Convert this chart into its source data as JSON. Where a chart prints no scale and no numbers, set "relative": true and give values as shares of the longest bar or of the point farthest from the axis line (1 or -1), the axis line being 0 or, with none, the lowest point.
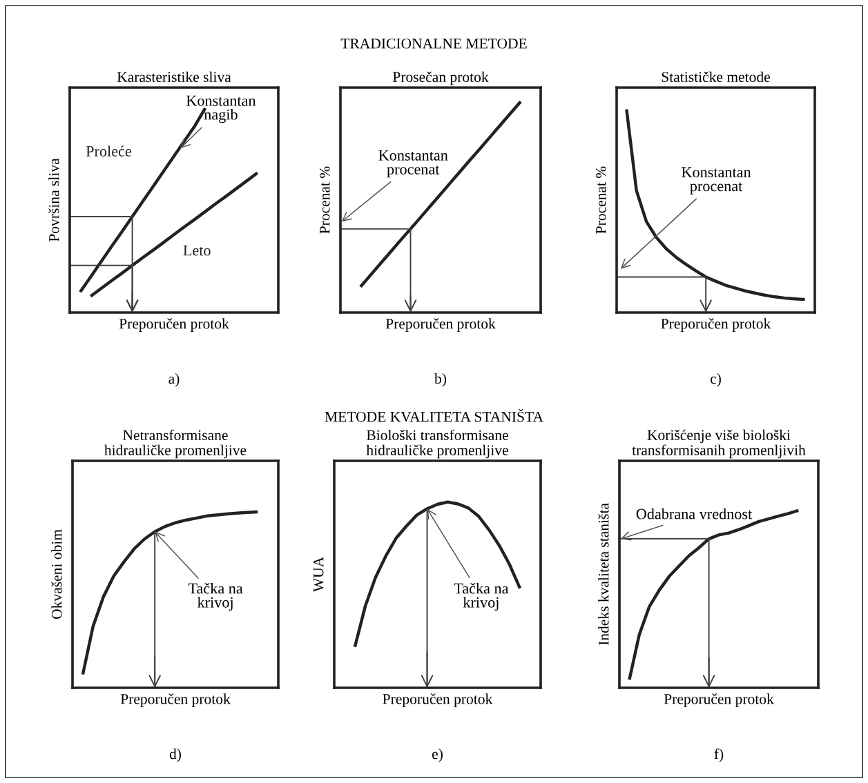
{
  "chart_data": [
    {
      "type": "line",
      "relative": true,
      "title": "Karasteristike sliva",
      "xlabel": "Preporučen protok",
      "ylabel": "Površina sliva",
      "tick_labels": false,
      "categories": [
        null,
        null,
        null,
        null,
        null,
        null,
        null,
        null,
        null,
        null,
        null,
        null,
        null,
        null,
        null,
        null,
        null,
        null,
        null,
        null,
        null
      ],
      "series": [
        {
          "name": "Proleće",
          "color": "#1e2420",
          "values": [
            null,
            0.1,
            0.174,
            0.248,
            0.322,
            0.395,
            0.469,
            0.543,
            0.617,
            0.691,
            0.765,
            0.839,
            0.913,
            1.0,
            null,
            null,
            null,
            null,
            null,
            null,
            null
          ]
        },
        {
          "name": "Leto",
          "color": "#1e2420",
          "values": [
            null,
            null,
            0.079,
            0.117,
            0.155,
            0.192,
            0.23,
            0.268,
            0.305,
            0.343,
            0.381,
            0.419,
            0.456,
            0.494,
            0.532,
            0.569,
            0.607,
            0.645,
            0.683,
            null,
            null
          ]
        },
        {
          "type": "step",
          "color": "#404040",
          "values": [
            0.469,
            0.469,
            0.469,
            0.469,
            0.469,
            0.469,
            0.469,
            0,
            null,
            null,
            null,
            null,
            null,
            null,
            null,
            null,
            null,
            null,
            null,
            null,
            null
          ]
        },
        {
          "type": "step",
          "color": "#404040",
          "values": [
            0.23,
            0.23,
            0.23,
            0.23,
            0.23,
            0.23,
            0.23,
            0,
            null,
            null,
            null,
            null,
            null,
            null,
            null,
            null,
            null,
            null,
            null,
            null,
            null
          ]
        }
      ],
      "annotations": [
        "a)",
        "Konstantan\nnagib",
        "TRADICIONALNE METODE"
      ]
    },
    {
      "type": "line",
      "relative": true,
      "title": "Prosečan protok",
      "xlabel": "Preporučen protok",
      "ylabel": "Procenat %",
      "tick_labels": false,
      "categories": [
        null,
        null,
        null,
        null,
        null,
        null,
        null,
        null,
        null,
        null,
        null,
        null,
        null,
        null,
        null,
        null,
        null,
        null,
        null,
        null,
        null
      ],
      "series": [
        {
          "color": "#1e2420",
          "values": [
            null,
            null,
            0.122,
            0.177,
            0.232,
            0.287,
            0.342,
            0.396,
            0.451,
            0.506,
            0.561,
            0.616,
            0.671,
            0.726,
            0.78,
            0.835,
            0.89,
            0.945,
            1.0,
            null,
            null
          ]
        },
        {
          "type": "step",
          "color": "#404040",
          "values": [
            0.396,
            0.396,
            0.396,
            0.396,
            0.396,
            0.396,
            0.396,
            0.396,
            0,
            null,
            null,
            null,
            null,
            null,
            null,
            null,
            null,
            null,
            null,
            null,
            null
          ]
        }
      ],
      "annotations": [
        "b)",
        "Konstantan\nprocenat"
      ]
    },
    {
      "type": "line",
      "relative": true,
      "title": "Statističke metode",
      "xlabel": "Preporučen protok",
      "ylabel": "Procenat %",
      "tick_labels": false,
      "categories": [
        null,
        null,
        null,
        null,
        null,
        null,
        null,
        null,
        null,
        null,
        null,
        null,
        null,
        null,
        null,
        null,
        null,
        null,
        null,
        null,
        null
      ],
      "series": [
        {
          "color": "#1e2420",
          "values": [
            null,
            1.0,
            0.6,
            0.448,
            0.37,
            0.314,
            0.272,
            0.237,
            0.205,
            0.175,
            0.154,
            0.134,
            0.12,
            0.106,
            0.095,
            0.085,
            0.077,
            0.071,
            0.067,
            0.064,
            null
          ]
        },
        {
          "type": "step",
          "color": "#404040",
          "values": [
            0.175,
            0.175,
            0.175,
            0.175,
            0.175,
            0.175,
            0.175,
            0.175,
            0.175,
            0.175,
            0,
            null,
            null,
            null,
            null,
            null,
            null,
            null,
            null,
            null,
            null
          ]
        }
      ],
      "annotations": [
        "c)",
        "Konstantan\nprocenat"
      ]
    },
    {
      "type": "line",
      "relative": true,
      "title": "Netransformisane\nhidrauličke promenljive",
      "xlabel": "Preporučen protok",
      "ylabel": "Okvašeni obim",
      "tick_labels": false,
      "categories": [
        null,
        null,
        null,
        null,
        null,
        null,
        null,
        null,
        null,
        null,
        null,
        null,
        null,
        null,
        null,
        null,
        null,
        null,
        null,
        null,
        null
      ],
      "series": [
        {
          "color": "#1e2420",
          "values": [
            null,
            0.076,
            0.35,
            0.517,
            0.634,
            0.716,
            0.79,
            0.846,
            0.887,
            0.917,
            0.938,
            0.953,
            0.964,
            0.976,
            0.982,
            0.988,
            0.993,
            0.997,
            1.0,
            null,
            null
          ]
        },
        {
          "type": "step",
          "color": "#404040",
          "values": [
            null,
            null,
            null,
            null,
            null,
            null,
            null,
            null,
            0.887,
            0,
            null,
            null,
            null,
            null,
            null,
            null,
            null,
            null,
            null,
            null,
            null
          ]
        }
      ],
      "annotations": [
        "d)",
        "Tačka na\nkrivoj",
        "METODE KVALITETA STANIŠTA"
      ]
    },
    {
      "type": "line",
      "relative": true,
      "title": "Biološki transformisane\nhidrauličke promenljive",
      "xlabel": "Preporučen protok",
      "ylabel": "WUA",
      "tick_labels": false,
      "categories": [
        null,
        null,
        null,
        null,
        null,
        null,
        null,
        null,
        null,
        null,
        null,
        null,
        null,
        null,
        null,
        null,
        null,
        null,
        null,
        null,
        null
      ],
      "series": [
        {
          "color": "#1e2420",
          "values": [
            null,
            null,
            0.22,
            0.438,
            0.594,
            0.71,
            0.806,
            0.871,
            0.93,
            0.964,
            0.988,
            1.0,
            0.99,
            0.968,
            0.923,
            0.85,
            0.765,
            0.662,
            0.535,
            null,
            null
          ]
        },
        {
          "type": "step",
          "color": "#404040",
          "values": [
            null,
            null,
            null,
            null,
            null,
            null,
            null,
            null,
            null,
            0.964,
            0,
            null,
            null,
            null,
            null,
            null,
            null,
            null,
            null,
            null,
            null
          ]
        }
      ],
      "annotations": [
        "e)",
        "Tačka na\nkrivoj"
      ]
    },
    {
      "type": "line",
      "relative": true,
      "title": "Korišćenje više biološki\ntransformisanih promenljivih",
      "xlabel": "Preporučen protok",
      "ylabel": "Indeks kvaliteta staništa",
      "tick_labels": false,
      "categories": [
        null,
        null,
        null,
        null,
        null,
        null,
        null,
        null,
        null,
        null,
        null,
        null,
        null,
        null,
        null,
        null,
        null,
        null,
        null,
        null,
        null
      ],
      "series": [
        {
          "color": "#1e2420",
          "values": [
            null,
            0.046,
            0.3,
            0.457,
            0.55,
            0.628,
            0.687,
            0.745,
            0.79,
            0.84,
            0.862,
            0.873,
            0.892,
            0.914,
            0.937,
            0.953,
            0.968,
            0.983,
            1.0,
            null,
            null
          ]
        },
        {
          "type": "step",
          "color": "#404040",
          "values": [
            0.84,
            0.84,
            0.84,
            0.84,
            0.84,
            0.84,
            0.84,
            0.84,
            0.84,
            0.84,
            0,
            null,
            null,
            null,
            null,
            null,
            null,
            null,
            null,
            null,
            null
          ]
        }
      ],
      "annotations": [
        "f)",
        "Odabrana vrednost"
      ]
    }
  ]
}
